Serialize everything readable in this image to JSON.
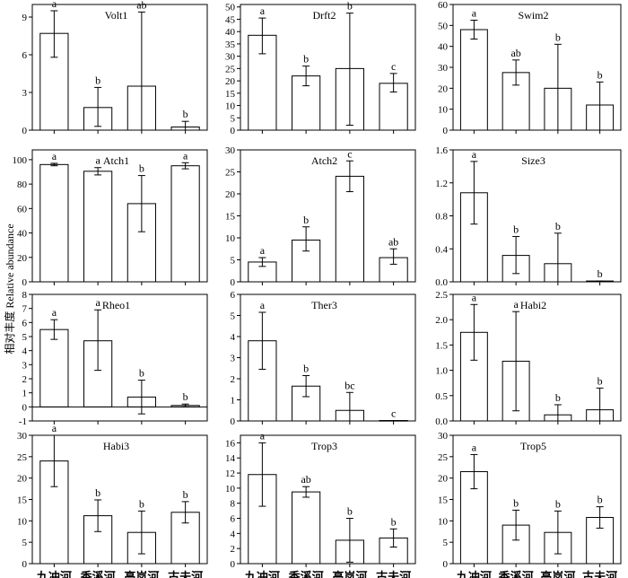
{
  "ylabel": "相对丰度 Relative abundance",
  "sites": [
    "九冲河",
    "香溪河",
    "高岚河",
    "古夫河"
  ],
  "chart_data": [
    {
      "type": "bar",
      "title": "Volt1",
      "categories": [
        "九冲河",
        "香溪河",
        "高岚河",
        "古夫河"
      ],
      "ylim": [
        0,
        10
      ],
      "yticks": [
        0,
        3,
        6,
        9
      ],
      "values": [
        7.7,
        1.8,
        3.5,
        0.25
      ],
      "err_low": [
        5.8,
        0.3,
        0.0,
        0.0
      ],
      "err_high": [
        9.5,
        3.4,
        9.4,
        0.7
      ],
      "labels": [
        "a",
        "b",
        "ab",
        "b"
      ]
    },
    {
      "type": "bar",
      "title": "Drft2",
      "categories": [
        "九冲河",
        "香溪河",
        "高岚河",
        "古夫河"
      ],
      "ylim": [
        0,
        51
      ],
      "yticks": [
        0,
        5,
        10,
        15,
        20,
        25,
        30,
        35,
        40,
        45,
        50
      ],
      "values": [
        38.5,
        22,
        25,
        19
      ],
      "err_low": [
        31,
        18,
        2,
        15.5
      ],
      "err_high": [
        45.5,
        26,
        47.5,
        23
      ],
      "labels": [
        "a",
        "b",
        "b",
        "c"
      ]
    },
    {
      "type": "bar",
      "title": "Swim2",
      "categories": [
        "九冲河",
        "香溪河",
        "高岚河",
        "古夫河"
      ],
      "ylim": [
        0,
        60
      ],
      "yticks": [
        0,
        10,
        20,
        30,
        40,
        50,
        60
      ],
      "values": [
        48,
        27.5,
        20,
        12
      ],
      "err_low": [
        43.5,
        21.5,
        0,
        0
      ],
      "err_high": [
        52.5,
        33.5,
        41,
        23
      ],
      "labels": [
        "a",
        "ab",
        "b",
        "b"
      ]
    },
    {
      "type": "bar",
      "title": "Atch1",
      "categories": [
        "九冲河",
        "香溪河",
        "高岚河",
        "古夫河"
      ],
      "ylim": [
        0,
        108
      ],
      "yticks": [
        0,
        20,
        40,
        60,
        80,
        100
      ],
      "values": [
        96,
        90.5,
        64,
        95
      ],
      "err_low": [
        95,
        87.5,
        41,
        92.5
      ],
      "err_high": [
        97,
        93.5,
        87,
        97.5
      ],
      "labels": [
        "a",
        "a",
        "b",
        "a"
      ]
    },
    {
      "type": "bar",
      "title": "Atch2",
      "categories": [
        "九冲河",
        "香溪河",
        "高岚河",
        "古夫河"
      ],
      "ylim": [
        0,
        30
      ],
      "yticks": [
        0,
        5,
        10,
        15,
        20,
        25,
        30
      ],
      "values": [
        4.5,
        9.5,
        24,
        5.5
      ],
      "err_low": [
        3.5,
        7,
        20.5,
        4
      ],
      "err_high": [
        5.5,
        12.5,
        27.5,
        7.5
      ],
      "labels": [
        "a",
        "b",
        "c",
        "ab"
      ]
    },
    {
      "type": "bar",
      "title": "Size3",
      "categories": [
        "九冲河",
        "香溪河",
        "高岚河",
        "古夫河"
      ],
      "ylim": [
        0,
        1.6
      ],
      "yticks": [
        0,
        0.4,
        0.8,
        1.2,
        1.6
      ],
      "values": [
        1.08,
        0.32,
        0.22,
        0.01
      ],
      "err_low": [
        0.7,
        0.1,
        0,
        0
      ],
      "err_high": [
        1.46,
        0.55,
        0.59,
        0.01
      ],
      "labels": [
        "a",
        "b",
        "b",
        "b"
      ]
    },
    {
      "type": "bar",
      "title": "Rheo1",
      "categories": [
        "九冲河",
        "香溪河",
        "高岚河",
        "古夫河"
      ],
      "ylim": [
        -1,
        8
      ],
      "yticks": [
        -1,
        0,
        1,
        2,
        3,
        4,
        5,
        6,
        7,
        8
      ],
      "values": [
        5.5,
        4.7,
        0.7,
        0.1
      ],
      "err_low": [
        4.8,
        2.6,
        -0.5,
        0.0
      ],
      "err_high": [
        6.2,
        6.9,
        1.9,
        0.2
      ],
      "labels": [
        "a",
        "a",
        "b",
        "b"
      ]
    },
    {
      "type": "bar",
      "title": "Ther3",
      "categories": [
        "九冲河",
        "香溪河",
        "高岚河",
        "古夫河"
      ],
      "ylim": [
        0,
        6
      ],
      "yticks": [
        0,
        1,
        2,
        3,
        4,
        5,
        6
      ],
      "values": [
        3.8,
        1.65,
        0.5,
        0.02
      ],
      "err_low": [
        2.45,
        1.15,
        0,
        0
      ],
      "err_high": [
        5.15,
        2.15,
        1.35,
        0.02
      ],
      "labels": [
        "a",
        "b",
        "bc",
        "c"
      ]
    },
    {
      "type": "bar",
      "title": "Habi2",
      "categories": [
        "九冲河",
        "香溪河",
        "高岚河",
        "古夫河"
      ],
      "ylim": [
        0,
        2.5
      ],
      "yticks": [
        0,
        0.5,
        1.0,
        1.5,
        2.0,
        2.5
      ],
      "values": [
        1.75,
        1.18,
        0.12,
        0.22
      ],
      "err_low": [
        1.2,
        0.2,
        0,
        0
      ],
      "err_high": [
        2.3,
        2.16,
        0.32,
        0.65
      ],
      "labels": [
        "a",
        "a",
        "b",
        "b"
      ]
    },
    {
      "type": "bar",
      "title": "Habi3",
      "categories": [
        "九冲河",
        "香溪河",
        "高岚河",
        "古夫河"
      ],
      "ylim": [
        0,
        30
      ],
      "yticks": [
        0,
        5,
        10,
        15,
        20,
        25,
        30
      ],
      "values": [
        24,
        11.2,
        7.3,
        12
      ],
      "err_low": [
        18,
        7.5,
        2.3,
        9.5
      ],
      "err_high": [
        30,
        14.9,
        12.3,
        14.5
      ],
      "labels": [
        "a",
        "b",
        "b",
        "b"
      ]
    },
    {
      "type": "bar",
      "title": "Trop3",
      "categories": [
        "九冲河",
        "香溪河",
        "高岚河",
        "古夫河"
      ],
      "ylim": [
        0,
        17
      ],
      "yticks": [
        0,
        2,
        4,
        6,
        8,
        10,
        12,
        14,
        16
      ],
      "values": [
        11.8,
        9.5,
        3.1,
        3.4
      ],
      "err_low": [
        7.6,
        8.8,
        0.2,
        2.2
      ],
      "err_high": [
        16,
        10.2,
        6,
        4.6
      ],
      "labels": [
        "a",
        "ab",
        "b",
        "b"
      ]
    },
    {
      "type": "bar",
      "title": "Trop5",
      "categories": [
        "九冲河",
        "香溪河",
        "高岚河",
        "古夫河"
      ],
      "ylim": [
        0,
        30
      ],
      "yticks": [
        0,
        5,
        10,
        15,
        20,
        25,
        30
      ],
      "values": [
        21.5,
        9,
        7.3,
        10.8
      ],
      "err_low": [
        17.5,
        5.5,
        2.3,
        8.3
      ],
      "err_high": [
        25.5,
        12.5,
        12.3,
        13.3
      ],
      "labels": [
        "a",
        "b",
        "b",
        "b"
      ]
    }
  ]
}
